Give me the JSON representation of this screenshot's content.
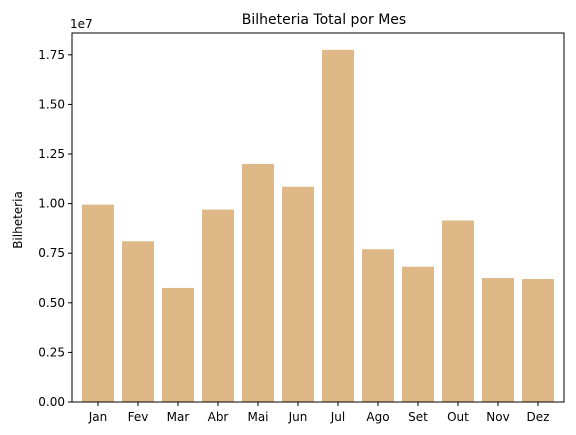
{
  "chart_data": {
    "type": "bar",
    "title": "Bilheteria Total por Mes",
    "xlabel": "",
    "ylabel": "Bilheteria",
    "y_offset_label": "1e7",
    "y_scale": 10000000,
    "categories": [
      "Jan",
      "Fev",
      "Mar",
      "Abr",
      "Mai",
      "Jun",
      "Jul",
      "Ago",
      "Set",
      "Out",
      "Nov",
      "Dez"
    ],
    "values": [
      9950000,
      8100000,
      5750000,
      9700000,
      12000000,
      10850000,
      17750000,
      7700000,
      6820000,
      9150000,
      6250000,
      6200000
    ],
    "ylim": [
      0,
      18600000
    ],
    "yticks": [
      0,
      2500000,
      5000000,
      7500000,
      10000000,
      12500000,
      15000000,
      17500000
    ],
    "ytick_labels": [
      "0.00",
      "0.25",
      "0.50",
      "0.75",
      "1.00",
      "1.25",
      "1.50",
      "1.75"
    ],
    "bar_color": "#deb887",
    "grid": false,
    "legend": "none"
  }
}
